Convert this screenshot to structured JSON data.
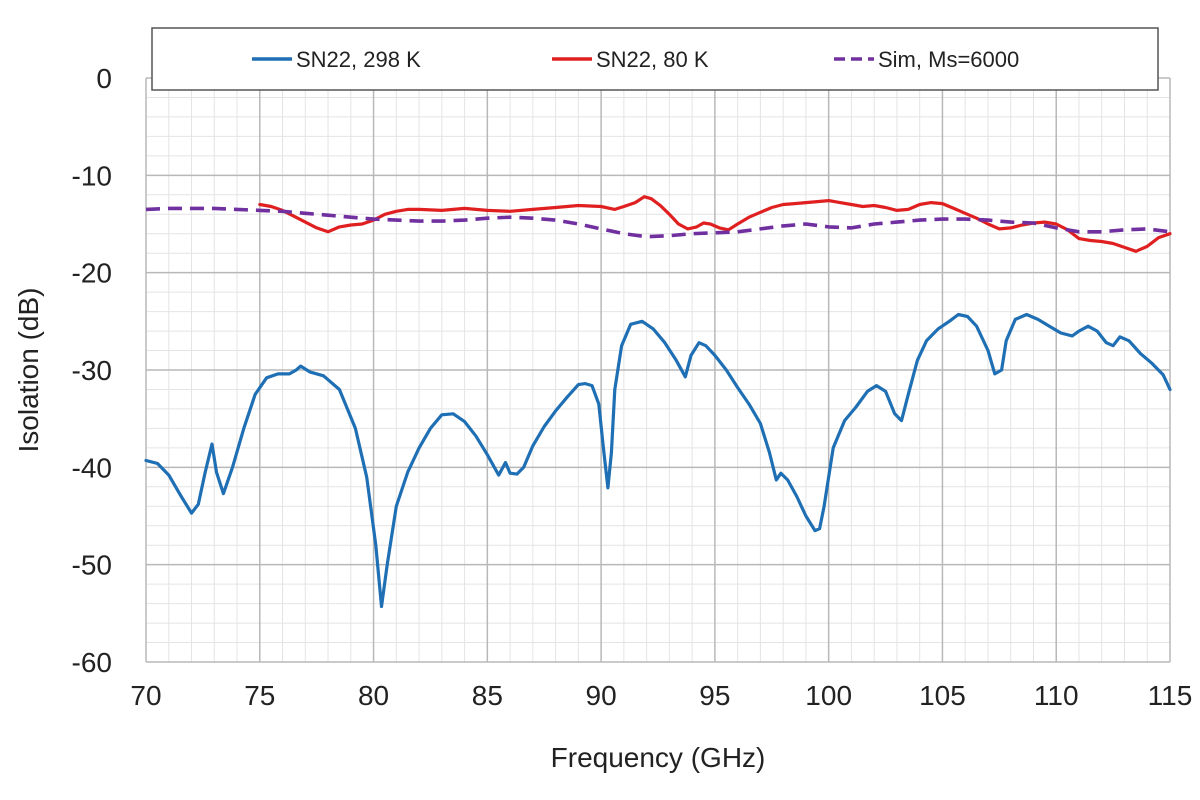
{
  "chart_data": {
    "type": "line",
    "xlabel": "Frequency (GHz)",
    "ylabel": "Isolation (dB)",
    "xlim": [
      70,
      115
    ],
    "ylim": [
      -60,
      0
    ],
    "x_ticks": [
      70,
      75,
      80,
      85,
      90,
      95,
      100,
      105,
      110,
      115
    ],
    "y_ticks": [
      0,
      -10,
      -20,
      -30,
      -40,
      -50,
      -60
    ],
    "x_tick_labels": [
      "70",
      "75",
      "80",
      "85",
      "90",
      "95",
      "100",
      "105",
      "110",
      "115"
    ],
    "y_tick_labels": [
      "0",
      "-10",
      "-20",
      "-30",
      "-40",
      "-50",
      "-60"
    ],
    "grid": true,
    "minor_grid": true,
    "legend": "top",
    "series": [
      {
        "name": "SN22, 298 K",
        "color": "#1f6fb4",
        "style": "solid",
        "x": [
          70.0,
          70.5,
          71.0,
          71.5,
          72.0,
          72.3,
          72.6,
          72.9,
          73.1,
          73.4,
          73.8,
          74.3,
          74.8,
          75.3,
          75.8,
          76.3,
          76.6,
          76.8,
          77.2,
          77.8,
          78.5,
          79.2,
          79.7,
          80.1,
          80.35,
          80.6,
          81.0,
          81.5,
          82.0,
          82.5,
          83.0,
          83.5,
          84.0,
          84.5,
          85.0,
          85.5,
          85.8,
          86.0,
          86.3,
          86.6,
          87.0,
          87.5,
          88.0,
          88.5,
          89.0,
          89.3,
          89.6,
          89.9,
          90.1,
          90.3,
          90.45,
          90.6,
          90.9,
          91.3,
          91.8,
          92.3,
          92.8,
          93.3,
          93.7,
          93.95,
          94.3,
          94.6,
          95.0,
          95.5,
          96.0,
          96.5,
          97.0,
          97.4,
          97.7,
          97.9,
          98.2,
          98.6,
          99.0,
          99.4,
          99.6,
          99.8,
          100.2,
          100.7,
          101.2,
          101.7,
          102.1,
          102.5,
          102.9,
          103.2,
          103.5,
          103.9,
          104.3,
          104.8,
          105.3,
          105.7,
          106.1,
          106.5,
          107.0,
          107.3,
          107.6,
          107.8,
          108.2,
          108.7,
          109.2,
          109.7,
          110.2,
          110.7,
          111.0,
          111.4,
          111.8,
          112.2,
          112.5,
          112.8,
          113.2,
          113.7,
          114.2,
          114.7,
          115.0
        ],
        "values": [
          -39.3,
          -39.6,
          -40.8,
          -42.8,
          -44.7,
          -43.8,
          -40.5,
          -37.6,
          -40.5,
          -42.7,
          -40.0,
          -36.0,
          -32.5,
          -30.8,
          -30.4,
          -30.4,
          -30.0,
          -29.6,
          -30.2,
          -30.6,
          -32.0,
          -36.0,
          -41.0,
          -48.0,
          -54.3,
          -50.0,
          -44.0,
          -40.5,
          -38.0,
          -36.0,
          -34.6,
          -34.5,
          -35.3,
          -36.8,
          -38.7,
          -40.8,
          -39.5,
          -40.6,
          -40.7,
          -40.0,
          -37.8,
          -35.8,
          -34.2,
          -32.8,
          -31.5,
          -31.4,
          -31.6,
          -33.5,
          -38.0,
          -42.1,
          -38.5,
          -32.0,
          -27.5,
          -25.3,
          -25.0,
          -25.8,
          -27.2,
          -29.0,
          -30.7,
          -28.5,
          -27.2,
          -27.5,
          -28.5,
          -30.0,
          -31.8,
          -33.5,
          -35.5,
          -38.5,
          -41.3,
          -40.6,
          -41.3,
          -43.0,
          -45.0,
          -46.5,
          -46.3,
          -44.0,
          -38.0,
          -35.2,
          -33.8,
          -32.2,
          -31.6,
          -32.2,
          -34.5,
          -35.2,
          -32.5,
          -29.0,
          -27.0,
          -25.8,
          -25.0,
          -24.3,
          -24.5,
          -25.5,
          -28.0,
          -30.4,
          -30.0,
          -27.0,
          -24.8,
          -24.3,
          -24.8,
          -25.5,
          -26.2,
          -26.5,
          -26.0,
          -25.5,
          -26.0,
          -27.2,
          -27.5,
          -26.6,
          -27.0,
          -28.3,
          -29.3,
          -30.5,
          -32.0
        ]
      },
      {
        "name": "SN22, 80 K",
        "color": "#e02020",
        "style": "solid",
        "x": [
          75.0,
          75.5,
          76.0,
          76.5,
          77.0,
          77.5,
          78.0,
          78.5,
          79.0,
          79.5,
          80.0,
          80.5,
          81.0,
          81.5,
          82.0,
          83.0,
          84.0,
          85.0,
          86.0,
          87.0,
          88.0,
          89.0,
          90.0,
          90.6,
          91.0,
          91.5,
          91.9,
          92.2,
          92.6,
          93.0,
          93.4,
          93.8,
          94.2,
          94.5,
          94.8,
          95.2,
          95.6,
          96.0,
          96.5,
          97.0,
          97.5,
          98.0,
          98.5,
          99.0,
          99.5,
          100.0,
          100.5,
          101.0,
          101.5,
          102.0,
          102.5,
          103.0,
          103.5,
          104.0,
          104.5,
          105.0,
          105.5,
          106.0,
          106.5,
          107.0,
          107.5,
          108.0,
          108.5,
          109.0,
          109.5,
          110.0,
          110.5,
          111.0,
          111.5,
          112.0,
          112.5,
          113.0,
          113.5,
          114.0,
          114.5,
          115.0
        ],
        "values": [
          -13.0,
          -13.2,
          -13.6,
          -14.2,
          -14.8,
          -15.4,
          -15.8,
          -15.3,
          -15.1,
          -15.0,
          -14.6,
          -14.0,
          -13.7,
          -13.5,
          -13.5,
          -13.6,
          -13.4,
          -13.6,
          -13.7,
          -13.5,
          -13.3,
          -13.1,
          -13.2,
          -13.5,
          -13.2,
          -12.8,
          -12.2,
          -12.4,
          -13.1,
          -14.0,
          -15.0,
          -15.5,
          -15.3,
          -14.9,
          -15.0,
          -15.4,
          -15.6,
          -15.0,
          -14.3,
          -13.8,
          -13.3,
          -13.0,
          -12.9,
          -12.8,
          -12.7,
          -12.6,
          -12.8,
          -13.0,
          -13.2,
          -13.1,
          -13.3,
          -13.6,
          -13.5,
          -13.0,
          -12.8,
          -12.9,
          -13.4,
          -13.9,
          -14.4,
          -15.0,
          -15.5,
          -15.4,
          -15.1,
          -14.9,
          -14.8,
          -15.0,
          -15.6,
          -16.5,
          -16.7,
          -16.8,
          -17.0,
          -17.4,
          -17.8,
          -17.3,
          -16.4,
          -16.0
        ]
      },
      {
        "name": "Sim, Ms=6000",
        "color": "#7030a0",
        "style": "dashed",
        "x": [
          70.0,
          71.0,
          72.0,
          73.0,
          74.0,
          75.0,
          76.0,
          77.0,
          78.0,
          79.0,
          80.0,
          81.0,
          82.0,
          83.0,
          84.0,
          85.0,
          86.0,
          87.0,
          88.0,
          89.0,
          90.0,
          91.0,
          92.0,
          93.0,
          94.0,
          95.0,
          96.0,
          97.0,
          98.0,
          99.0,
          100.0,
          101.0,
          102.0,
          103.0,
          104.0,
          105.0,
          106.0,
          107.0,
          108.0,
          109.0,
          110.0,
          111.0,
          112.0,
          113.0,
          114.0,
          115.0
        ],
        "values": [
          -13.5,
          -13.4,
          -13.4,
          -13.4,
          -13.5,
          -13.6,
          -13.7,
          -13.9,
          -14.1,
          -14.3,
          -14.5,
          -14.6,
          -14.7,
          -14.7,
          -14.6,
          -14.4,
          -14.3,
          -14.4,
          -14.6,
          -15.0,
          -15.5,
          -16.0,
          -16.3,
          -16.2,
          -16.0,
          -15.9,
          -15.8,
          -15.5,
          -15.2,
          -15.0,
          -15.3,
          -15.4,
          -15.0,
          -14.8,
          -14.6,
          -14.5,
          -14.5,
          -14.6,
          -14.8,
          -14.9,
          -15.4,
          -15.8,
          -15.8,
          -15.6,
          -15.5,
          -15.8
        ]
      }
    ]
  }
}
